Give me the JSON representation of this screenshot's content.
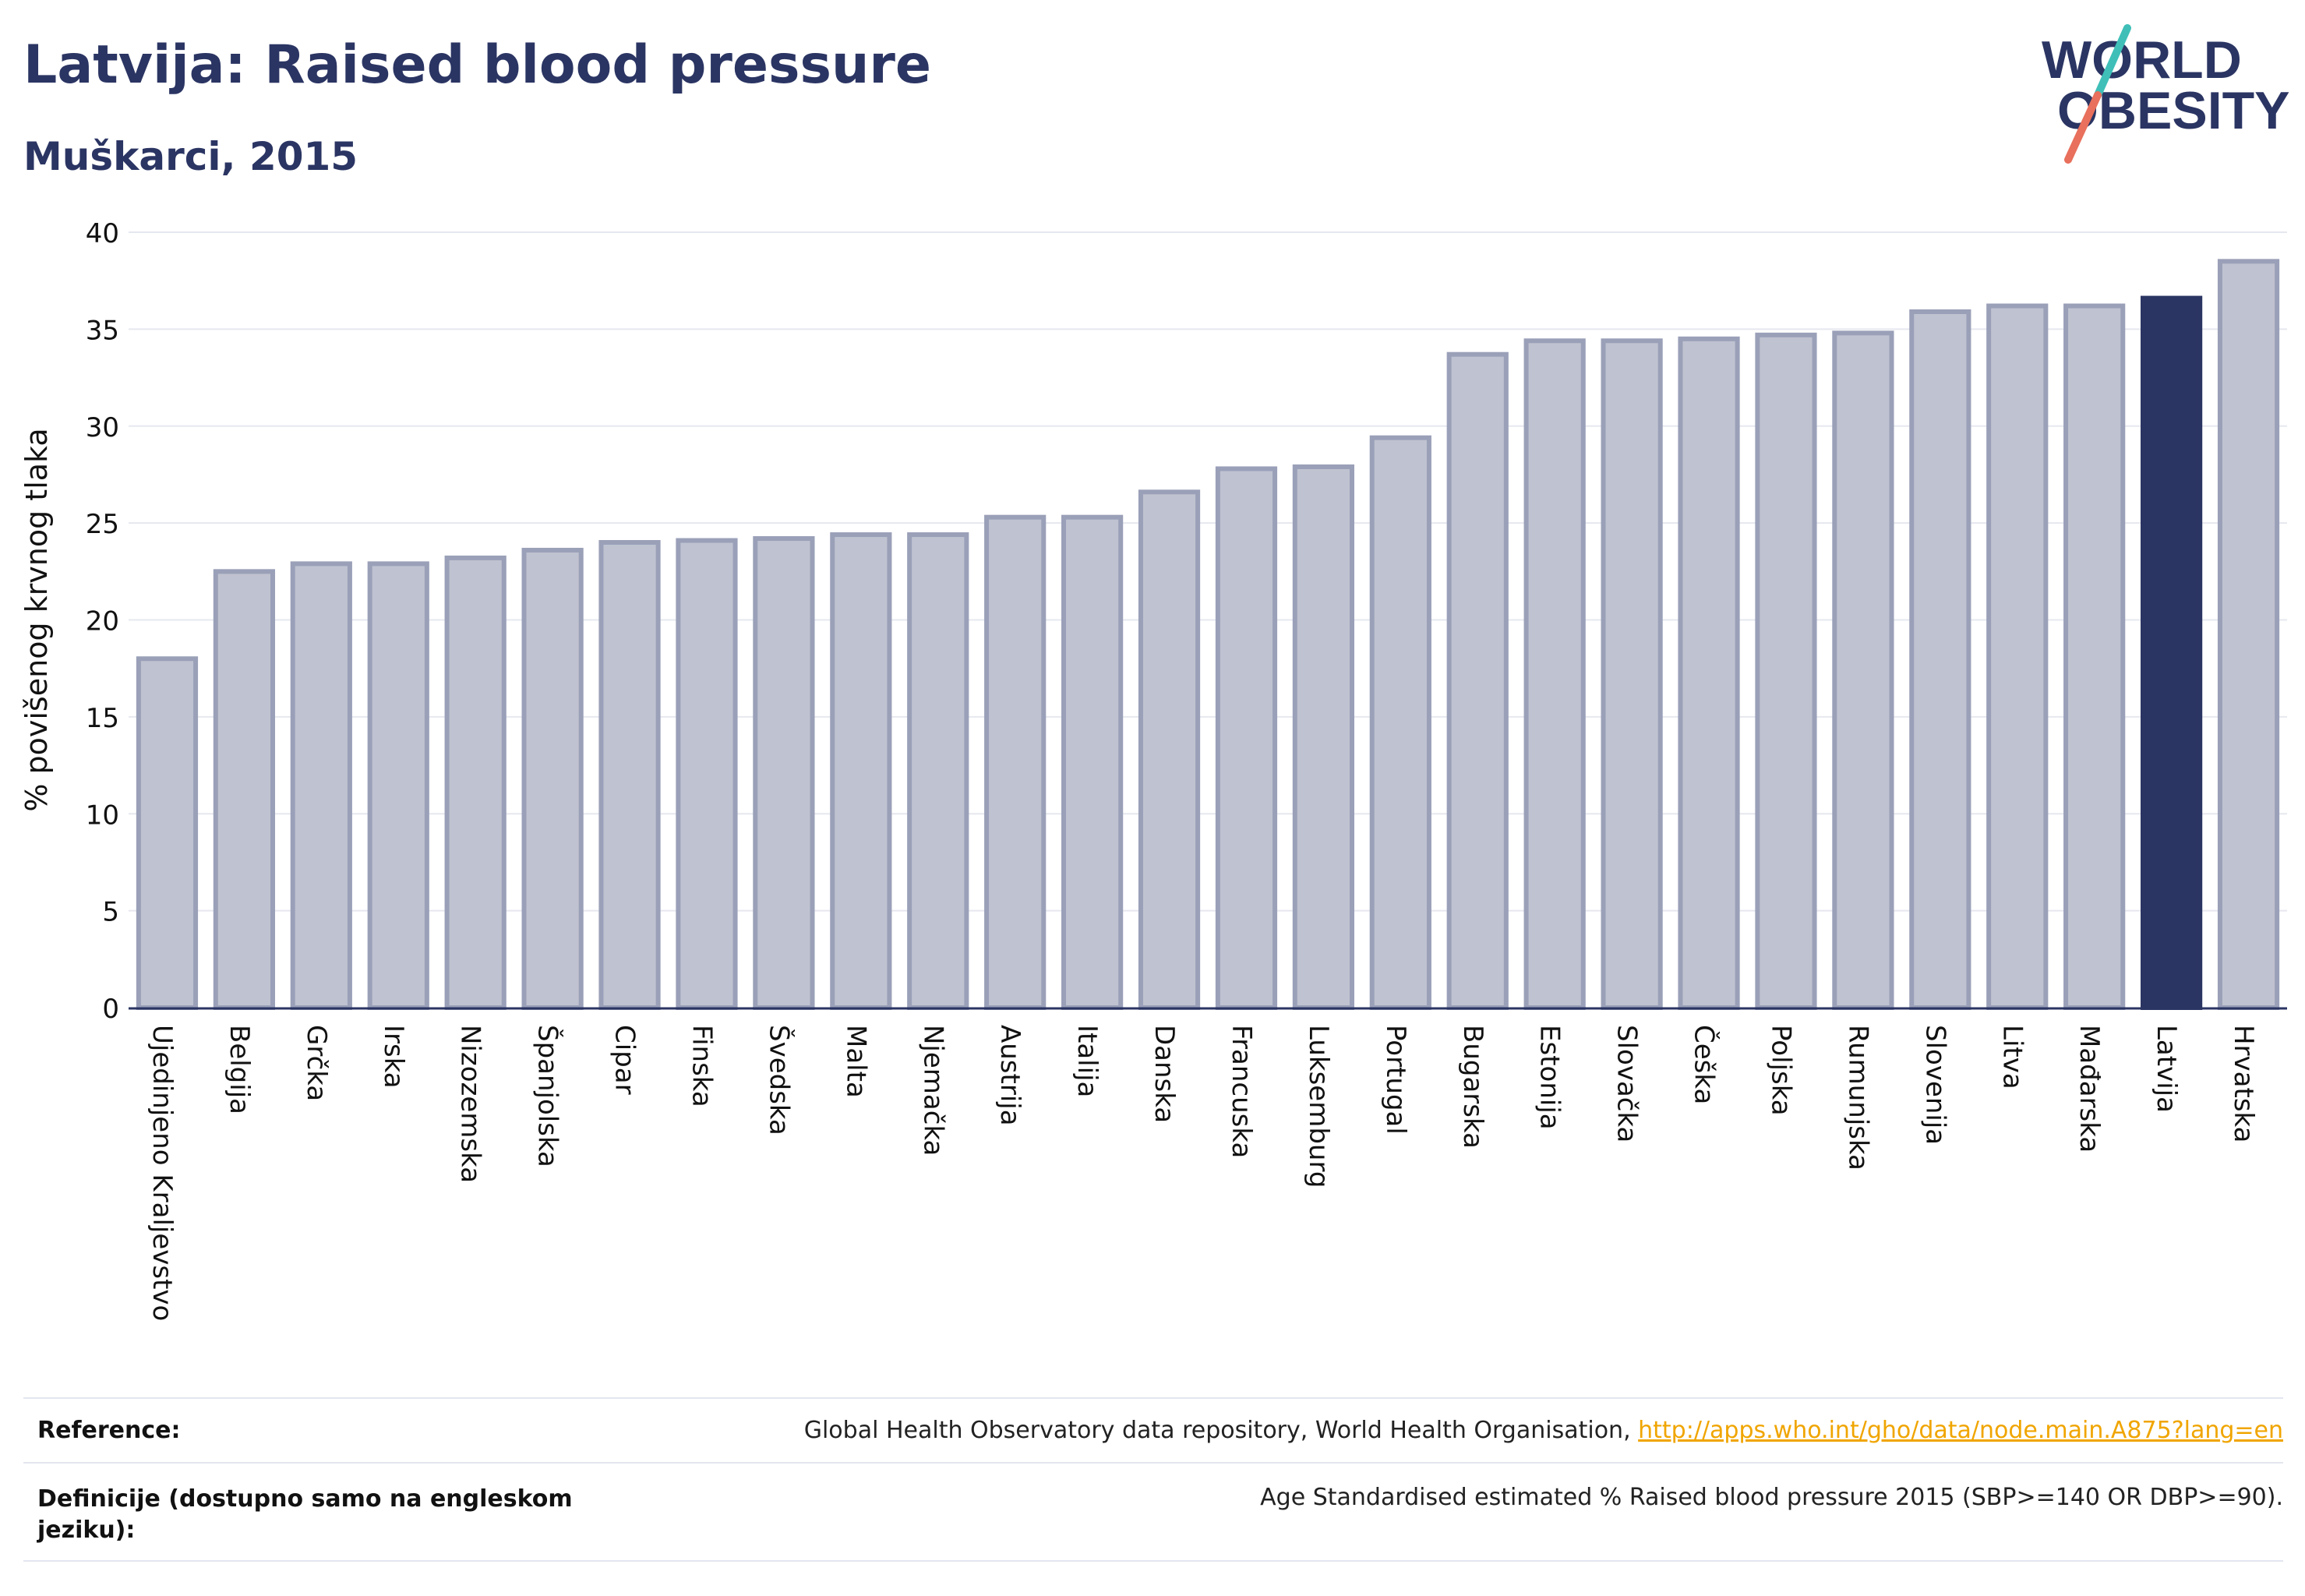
{
  "header": {
    "title": "Latvija: Raised blood pressure",
    "subtitle": "Muškarci, 2015"
  },
  "logo": {
    "line1": "WORLD",
    "line2": "OBESITY",
    "text_color": "#2b3563",
    "slash_top_color": "#3fbfb8",
    "slash_bottom_color": "#e8705c"
  },
  "colors": {
    "bar_default": "#bfc2d0",
    "bar_default_stroke": "#9aa0b8",
    "bar_highlight": "#2b3563",
    "axis": "#2b3563",
    "grid": "#e6e8ef"
  },
  "chart_data": {
    "type": "bar",
    "title": "Latvija: Raised blood pressure",
    "subtitle": "Muškarci, 2015",
    "xlabel": "",
    "ylabel": "% povišenog krvnog tlaka",
    "ylim": [
      0,
      40
    ],
    "yticks": [
      0,
      5,
      10,
      15,
      20,
      25,
      30,
      35,
      40
    ],
    "grid": true,
    "highlight": "Latvija",
    "categories": [
      "Ujedinjeno Kraljevstvo",
      "Belgija",
      "Grčka",
      "Irska",
      "Nizozemska",
      "Španjolska",
      "Cipar",
      "Finska",
      "Švedska",
      "Malta",
      "Njemačka",
      "Austrija",
      "Italija",
      "Danska",
      "Francuska",
      "Luksemburg",
      "Portugal",
      "Bugarska",
      "Estonija",
      "Slovačka",
      "Češka",
      "Poljska",
      "Rumunjska",
      "Slovenija",
      "Litva",
      "Mađarska",
      "Latvija",
      "Hrvatska"
    ],
    "values": [
      18.0,
      22.5,
      22.9,
      22.9,
      23.2,
      23.6,
      24.0,
      24.1,
      24.2,
      24.4,
      24.4,
      25.3,
      25.3,
      26.6,
      27.8,
      27.9,
      29.4,
      33.7,
      34.4,
      34.4,
      34.5,
      34.7,
      34.8,
      35.9,
      36.2,
      36.2,
      36.6,
      38.5
    ]
  },
  "reference": {
    "label": "Reference:",
    "text": "Global Health Observatory data repository, World Health Organisation, ",
    "link": "http://apps.who.int/gho/data/node.main.A875?lang=en"
  },
  "definition": {
    "label_line1": "Definicije (dostupno samo na engleskom",
    "label_line2": "jeziku):",
    "text": "Age Standardised estimated % Raised blood pressure 2015 (SBP>=140 OR DBP>=90)."
  }
}
